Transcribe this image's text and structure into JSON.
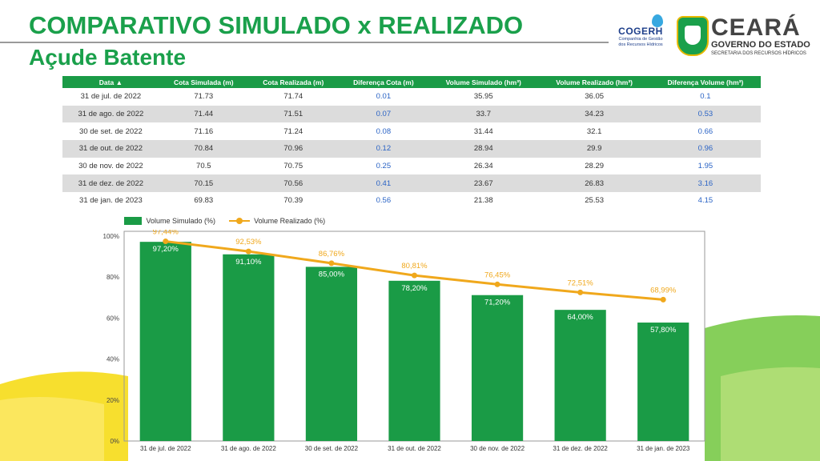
{
  "header": {
    "title": "COMPARATIVO SIMULADO x REALIZADO",
    "subtitle": "Açude Batente"
  },
  "logos": {
    "cogerh_name": "COGERH",
    "cogerh_sub_1": "Companhia de Gestão",
    "cogerh_sub_2": "dos Recursos Hídricos",
    "state_name": "CEARÁ",
    "state_gov": "GOVERNO DO ESTADO",
    "state_secretariat": "SECRETARIA DOS RECURSOS HÍDRICOS"
  },
  "table": {
    "headers": [
      "Data ▲",
      "Cota Simulada (m)",
      "Cota Realizada (m)",
      "Diferença Cota (m)",
      "Volume Simulado (hm³)",
      "Volume Realizado (hm³)",
      "Diferença Volume (hm³)"
    ],
    "rows": [
      [
        "31 de jul. de 2022",
        "71.73",
        "71.74",
        "0.01",
        "35.95",
        "36.05",
        "0.1"
      ],
      [
        "31 de ago. de 2022",
        "71.44",
        "71.51",
        "0.07",
        "33.7",
        "34.23",
        "0.53"
      ],
      [
        "30 de set. de 2022",
        "71.16",
        "71.24",
        "0.08",
        "31.44",
        "32.1",
        "0.66"
      ],
      [
        "31 de out. de 2022",
        "70.84",
        "70.96",
        "0.12",
        "28.94",
        "29.9",
        "0.96"
      ],
      [
        "30 de nov. de 2022",
        "70.5",
        "70.75",
        "0.25",
        "26.34",
        "28.29",
        "1.95"
      ],
      [
        "31 de dez. de 2022",
        "70.15",
        "70.56",
        "0.41",
        "23.67",
        "26.83",
        "3.16"
      ],
      [
        "31 de jan. de 2023",
        "69.83",
        "70.39",
        "0.56",
        "21.38",
        "25.53",
        "4.15"
      ]
    ]
  },
  "chart_data": {
    "type": "bar",
    "categories": [
      "31 de jul. de 2022",
      "31 de ago. de 2022",
      "30 de set. de 2022",
      "31 de out. de 2022",
      "30 de nov. de 2022",
      "31 de dez. de 2022",
      "31 de jan. de 2023"
    ],
    "series": [
      {
        "name": "Volume Simulado (%)",
        "type": "bar",
        "values": [
          97.2,
          91.1,
          85.0,
          78.2,
          71.2,
          64.0,
          57.8
        ],
        "labels": [
          "97,20%",
          "91,10%",
          "85,00%",
          "78,20%",
          "71,20%",
          "64,00%",
          "57,80%"
        ]
      },
      {
        "name": "Volume Realizado (%)",
        "type": "line",
        "values": [
          97.44,
          92.53,
          86.76,
          80.81,
          76.45,
          72.51,
          68.99
        ],
        "labels": [
          "97,44%",
          "92,53%",
          "86,76%",
          "80,81%",
          "76,45%",
          "72,51%",
          "68,99%"
        ]
      }
    ],
    "yticks": [
      "0%",
      "20%",
      "40%",
      "60%",
      "80%",
      "100%"
    ],
    "ylim": [
      0,
      100
    ],
    "legend": "top-left",
    "grid": false,
    "colors": {
      "bar": "#1a9b46",
      "line": "#f0a81c"
    }
  }
}
